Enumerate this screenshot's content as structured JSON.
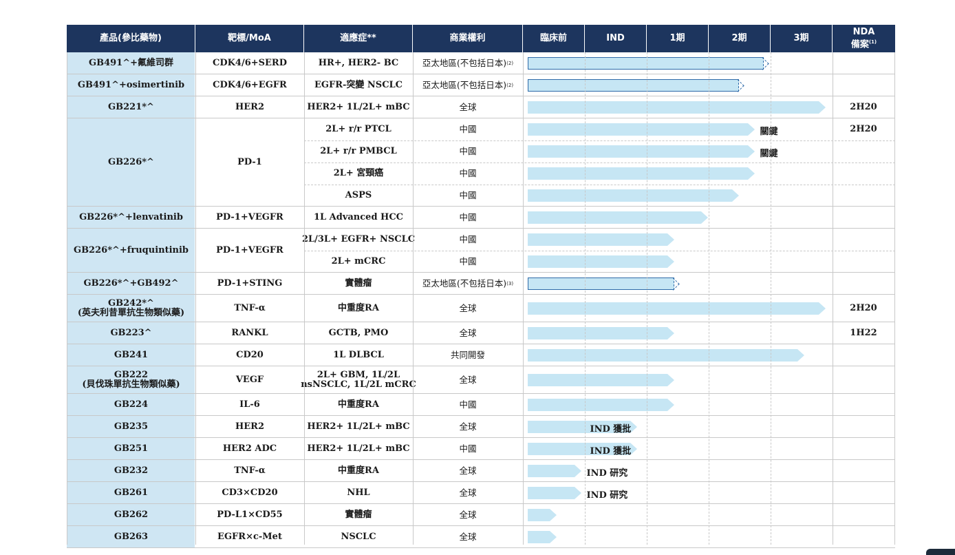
{
  "headers": {
    "product": "產品(參比藥物)",
    "target": "靶標/MoA",
    "indication": "適應症**",
    "rights": "商業權利",
    "preclinical": "臨床前",
    "ind": "IND",
    "phase1": "1期",
    "phase2": "2期",
    "phase3": "3期",
    "nda": "NDA",
    "nda_sub": "備案",
    "nda_sup": "(1)"
  },
  "colors": {
    "header_bg": "#1d355e",
    "product_bg": "#cfe6f3",
    "bar_fill": "#c6e6f4",
    "bar_outline": "#2e6aa8"
  },
  "chart_data": {
    "type": "table",
    "stages": [
      "臨床前",
      "IND",
      "1期",
      "2期",
      "3期",
      "NDA備案"
    ],
    "progress_unit": "stage columns reached (0 = start of 臨床前, 6 = end of NDA備案)",
    "products": [
      {
        "name": "GB491^+氟維司群",
        "sub": "",
        "target": "CDK4/6+SERD",
        "rows": [
          {
            "indication": "HR+, HER2- BC",
            "rights": "亞太地區(不包括日本)",
            "rights_sup": "(2)",
            "progress": 3.9,
            "style": "dashed",
            "note": "",
            "nda": ""
          }
        ]
      },
      {
        "name": "GB491^+osimertinib",
        "sub": "",
        "target": "CDK4/6+EGFR",
        "rows": [
          {
            "indication": "EGFR-突變 NSCLC",
            "rights": "亞太地區(不包括日本)",
            "rights_sup": "(2)",
            "progress": 3.5,
            "style": "dashed",
            "note": "",
            "nda": ""
          }
        ]
      },
      {
        "name": "GB221*^",
        "sub": "",
        "target": "HER2",
        "rows": [
          {
            "indication": "HER2+ 1L/2L+ mBC",
            "rights": "全球",
            "rights_sup": "",
            "progress": 4.9,
            "style": "solid",
            "note": "",
            "nda": "2H20"
          }
        ]
      },
      {
        "name": "GB226*^",
        "sub": "",
        "target": "PD-1",
        "rows": [
          {
            "indication": "2L+ r/r PTCL",
            "rights": "中國",
            "rights_sup": "",
            "progress": 3.75,
            "style": "solid",
            "note": "關鍵",
            "nda": "2H20"
          },
          {
            "indication": "2L+ r/r PMBCL",
            "rights": "中國",
            "rights_sup": "",
            "progress": 3.75,
            "style": "solid",
            "note": "關鍵",
            "nda": ""
          },
          {
            "indication": "2L+ 宮頸癌",
            "rights": "中國",
            "rights_sup": "",
            "progress": 3.75,
            "style": "solid",
            "note": "",
            "nda": ""
          },
          {
            "indication": "ASPS",
            "rights": "中國",
            "rights_sup": "",
            "progress": 3.5,
            "style": "solid",
            "note": "",
            "nda": ""
          }
        ]
      },
      {
        "name": "GB226*^+lenvatinib",
        "sub": "",
        "target": "PD-1+VEGFR",
        "rows": [
          {
            "indication": "1L Advanced HCC",
            "rights": "中國",
            "rights_sup": "",
            "progress": 3.0,
            "style": "solid",
            "note": "",
            "nda": ""
          }
        ]
      },
      {
        "name": "GB226*^+fruquintinib",
        "sub": "",
        "target": "PD-1+VEGFR",
        "rows": [
          {
            "indication": "2L/3L+ EGFR+ NSCLC",
            "rights": "中國",
            "rights_sup": "",
            "progress": 2.45,
            "style": "solid",
            "note": "",
            "nda": ""
          },
          {
            "indication": "2L+ mCRC",
            "rights": "中國",
            "rights_sup": "",
            "progress": 2.45,
            "style": "solid",
            "note": "",
            "nda": ""
          }
        ]
      },
      {
        "name": "GB226*^+GB492^",
        "sub": "",
        "target": "PD-1+STING",
        "rows": [
          {
            "indication": "實體瘤",
            "rights": "亞太地區(不包括日本)",
            "rights_sup": "(3)",
            "progress": 2.45,
            "style": "dashed",
            "note": "",
            "nda": ""
          }
        ]
      },
      {
        "name": "GB242*^",
        "sub": "(英夫利昔單抗生物類似藥)",
        "target": "TNF-α",
        "rows": [
          {
            "indication": "中重度RA",
            "rights": "全球",
            "rights_sup": "",
            "progress": 4.9,
            "style": "solid",
            "note": "",
            "nda": "2H20"
          }
        ]
      },
      {
        "name": "GB223^",
        "sub": "",
        "target": "RANKL",
        "rows": [
          {
            "indication": "GCTB, PMO",
            "rights": "全球",
            "rights_sup": "",
            "progress": 2.45,
            "style": "solid",
            "note": "",
            "nda": "1H22"
          }
        ]
      },
      {
        "name": "GB241",
        "sub": "",
        "target": "CD20",
        "rows": [
          {
            "indication": "1L DLBCL",
            "rights": "共同開發",
            "rights_sup": "",
            "progress": 4.55,
            "style": "solid",
            "note": "",
            "nda": ""
          }
        ]
      },
      {
        "name": "GB222",
        "sub": "(貝伐珠單抗生物類似藥)",
        "target": "VEGF",
        "rows": [
          {
            "indication": "2L+ GBM, 1L/2L",
            "indication2": "nsNSCLC, 1L/2L mCRC",
            "rights": "全球",
            "rights_sup": "",
            "progress": 2.45,
            "style": "solid",
            "note": "",
            "nda": ""
          }
        ]
      },
      {
        "name": "GB224",
        "sub": "",
        "target": "IL-6",
        "rows": [
          {
            "indication": "中重度RA",
            "rights": "中國",
            "rights_sup": "",
            "progress": 2.45,
            "style": "solid",
            "note": "",
            "nda": ""
          }
        ]
      },
      {
        "name": "GB235",
        "sub": "",
        "target": "HER2",
        "rows": [
          {
            "indication": "HER2+ 1L/2L+ mBC",
            "rights": "全球",
            "rights_sup": "",
            "progress": 1.85,
            "style": "solid",
            "note": "IND 獲批",
            "nda": ""
          }
        ]
      },
      {
        "name": "GB251",
        "sub": "",
        "target": "HER2 ADC",
        "rows": [
          {
            "indication": "HER2+ 1L/2L+ mBC",
            "rights": "中國",
            "rights_sup": "",
            "progress": 1.85,
            "style": "solid",
            "note": "IND 獲批",
            "nda": ""
          }
        ]
      },
      {
        "name": "GB232",
        "sub": "",
        "target": "TNF-α",
        "rows": [
          {
            "indication": "中重度RA",
            "rights": "全球",
            "rights_sup": "",
            "progress": 0.95,
            "style": "solid",
            "note": "IND 研究",
            "nda": ""
          }
        ]
      },
      {
        "name": "GB261",
        "sub": "",
        "target": "CD3×CD20",
        "rows": [
          {
            "indication": "NHL",
            "rights": "全球",
            "rights_sup": "",
            "progress": 0.95,
            "style": "solid",
            "note": "IND 研究",
            "nda": ""
          }
        ]
      },
      {
        "name": "GB262",
        "sub": "",
        "target": "PD-L1×CD55",
        "rows": [
          {
            "indication": "實體瘤",
            "rights": "全球",
            "rights_sup": "",
            "progress": 0.55,
            "style": "solid",
            "note": "",
            "nda": ""
          }
        ]
      },
      {
        "name": "GB263",
        "sub": "",
        "target": "EGFR×c-Met",
        "rows": [
          {
            "indication": "NSCLC",
            "rights": "全球",
            "rights_sup": "",
            "progress": 0.55,
            "style": "solid",
            "note": "",
            "nda": ""
          }
        ]
      }
    ]
  }
}
